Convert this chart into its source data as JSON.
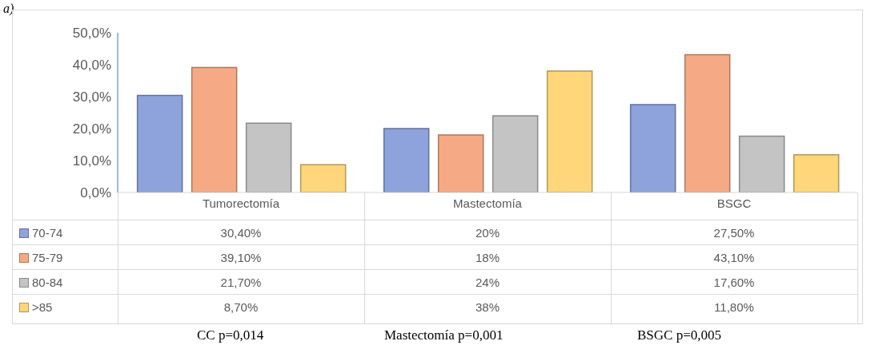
{
  "chart_data": {
    "type": "bar",
    "categories": [
      "Tumorectomía",
      "Mastectomía",
      "BSGC"
    ],
    "series": [
      {
        "name": "70-74",
        "color": "#8ea3dc",
        "values": [
          30.4,
          20,
          27.5
        ],
        "value_labels": [
          "30,40%",
          "20%",
          "27,50%"
        ]
      },
      {
        "name": "75-79",
        "color": "#f5aa85",
        "values": [
          39.1,
          18,
          43.1
        ],
        "value_labels": [
          "39,10%",
          "18%",
          "43,10%"
        ]
      },
      {
        "name": "80-84",
        "color": "#c4c4c4",
        "values": [
          21.7,
          24,
          17.6
        ],
        "value_labels": [
          "21,70%",
          "24%",
          "17,60%"
        ]
      },
      {
        "name": ">85",
        "color": "#ffd77a",
        "values": [
          8.7,
          38,
          11.8
        ],
        "value_labels": [
          "8,70%",
          "38%",
          "11,80%"
        ]
      }
    ],
    "ylim": [
      0,
      50
    ],
    "yticks": [
      {
        "value": 0,
        "label": "0,0%"
      },
      {
        "value": 10,
        "label": "10,0%"
      },
      {
        "value": 20,
        "label": "20,0%"
      },
      {
        "value": 30,
        "label": "30,0%"
      },
      {
        "value": 40,
        "label": "40,0%"
      },
      {
        "value": 50,
        "label": "50,0%"
      }
    ],
    "grid": false,
    "legend": "bottom left",
    "annotations": [
      "a)",
      "CC p=0,014",
      "Mastectomía p=0,001",
      "BSGC p=0,005"
    ]
  }
}
